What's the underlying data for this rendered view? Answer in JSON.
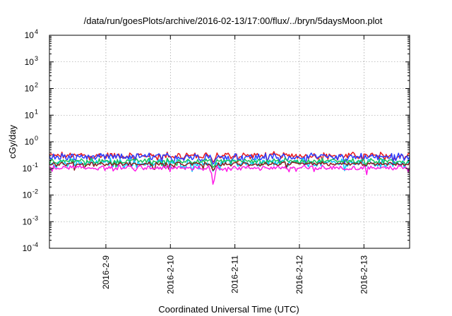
{
  "chart_data": {
    "type": "line",
    "title": "/data/run/goesPlots/archive/2016-02-13/17:00/flux/../bryn/5daysMoon.plot",
    "xlabel": "Coordinated Universal Time (UTC)",
    "ylabel": "cGy/day",
    "yscale": "log",
    "ylim": [
      0.0001,
      10000
    ],
    "y_ticks": [
      {
        "value": 0.0001,
        "base": "10",
        "exp": "-4"
      },
      {
        "value": 0.001,
        "base": "10",
        "exp": "-3"
      },
      {
        "value": 0.01,
        "base": "10",
        "exp": "-2"
      },
      {
        "value": 0.1,
        "base": "10",
        "exp": "-1"
      },
      {
        "value": 1,
        "base": "10",
        "exp": "0"
      },
      {
        "value": 10,
        "base": "10",
        "exp": "1"
      },
      {
        "value": 100,
        "base": "10",
        "exp": "2"
      },
      {
        "value": 1000,
        "base": "10",
        "exp": "3"
      },
      {
        "value": 10000,
        "base": "10",
        "exp": "4"
      }
    ],
    "xlim": [
      "2016-02-08 03:00",
      "2016-02-13 17:00"
    ],
    "x_ticks": [
      {
        "value": "2016-02-09 00:00",
        "label": "2016-2-9"
      },
      {
        "value": "2016-02-10 00:00",
        "label": "2016-2-10"
      },
      {
        "value": "2016-02-11 00:00",
        "label": "2016-2-11"
      },
      {
        "value": "2016-02-12 00:00",
        "label": "2016-2-12"
      },
      {
        "value": "2016-02-13 00:00",
        "label": "2016-2-13"
      }
    ],
    "grid": true,
    "legend": "none",
    "series": [
      {
        "color": "#e8191c",
        "level": 0.3,
        "jitter": 0.2,
        "dip_factor": 0.5
      },
      {
        "color": "#2a3cff",
        "level": 0.27,
        "jitter": 0.22,
        "dip_factor": 0.45
      },
      {
        "color": "#00c8ff",
        "level": 0.16,
        "jitter": 0.25,
        "dip_factor": 0.4
      },
      {
        "color": "#18c25a",
        "level": 0.19,
        "jitter": 0.15,
        "dip_factor": 0.5
      },
      {
        "color": "#8a1c1c",
        "level": 0.145,
        "jitter": 0.12,
        "dip_factor": 0.5
      },
      {
        "color": "#ff1ee8",
        "level": 0.105,
        "jitter": 0.14,
        "dip_factor": 0.12
      }
    ],
    "dip": {
      "x": "2016-02-10 16:00",
      "min_value": 0.011
    }
  }
}
